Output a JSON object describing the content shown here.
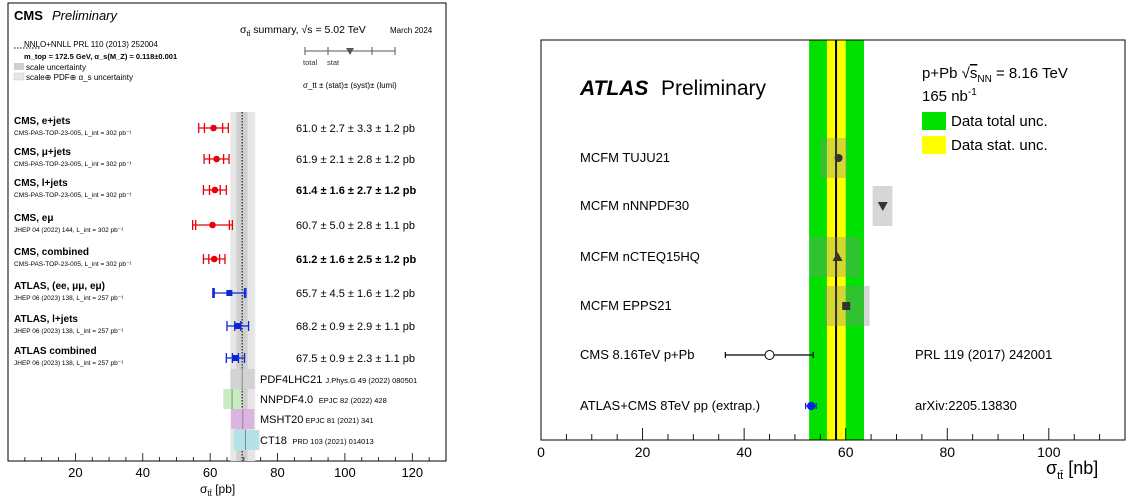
{
  "chart_data": [
    {
      "type": "scatter",
      "title": "CMS",
      "subtitle": "Preliminary",
      "summary_title": "σ_tt summary, √s = 5.02 TeV",
      "date": "March 2024",
      "xlabel": "σ_tt [pb]",
      "xlim": [
        0,
        130
      ],
      "xticks": [
        20,
        40,
        60,
        80,
        100,
        120
      ],
      "theory": {
        "line1": "NNLO+NNLL  PRL 110 (2013) 252004",
        "line2": "m_top = 172.5 GeV, α_s(M_Z) = 0.118±0.001",
        "line3": "scale uncertainty",
        "line4": "scale⊕ PDF⊕ α_s uncertainty",
        "central": 69.5,
        "scale_band": [
          67.8,
          71.1
        ],
        "full_band": [
          66.0,
          73.4
        ]
      },
      "legend_key": {
        "total": "total",
        "stat": "stat",
        "format": "σ_tt ± (stat)± (syst)± (lumi)"
      },
      "colors": {
        "cms": "#e8000b",
        "atlas": "#0a24d8",
        "scale": "#cfcfcf",
        "full": "#e6e6e6"
      },
      "measurements": [
        {
          "name": "CMS, e+jets",
          "ref": "CMS-PAS-TOP-23-005,  L_int = 302 pb⁻¹",
          "value": 61.0,
          "stat": 2.7,
          "total": 4.4,
          "text": "61.0 ± 2.7 ± 3.3 ± 1.2 pb",
          "bold": false,
          "exp": "cms"
        },
        {
          "name": "CMS, μ+jets",
          "ref": "CMS-PAS-TOP-23-005,  L_int = 302 pb⁻¹",
          "value": 61.9,
          "stat": 2.1,
          "total": 3.7,
          "text": "61.9 ± 2.1 ± 2.8 ± 1.2 pb",
          "bold": false,
          "exp": "cms"
        },
        {
          "name": "CMS, l+jets",
          "ref": "CMS-PAS-TOP-23-005,  L_int = 302 pb⁻¹",
          "value": 61.4,
          "stat": 1.6,
          "total": 3.4,
          "text": "61.4 ± 1.6 ± 2.7 ± 1.2 pb",
          "bold": true,
          "exp": "cms"
        },
        {
          "name": "CMS, eμ",
          "ref": "JHEP 04 (2022) 144,  L_int = 302 pb⁻¹",
          "value": 60.7,
          "stat": 5.0,
          "total": 5.9,
          "text": "60.7 ± 5.0 ± 2.8 ± 1.1 pb",
          "bold": false,
          "exp": "cms"
        },
        {
          "name": "CMS, combined",
          "ref": "CMS-PAS-TOP-23-005,  L_int = 302 pb⁻¹",
          "value": 61.2,
          "stat": 1.6,
          "total": 3.2,
          "text": "61.2 ± 1.6 ± 2.5 ± 1.2 pb",
          "bold": true,
          "exp": "cms"
        },
        {
          "name": "ATLAS, (ee, μμ, eμ)",
          "ref": "JHEP 06 (2023) 138,  L_int = 257 pb⁻¹",
          "value": 65.7,
          "stat": 4.5,
          "total": 4.9,
          "text": "65.7 ± 4.5 ± 1.6 ± 1.2 pb",
          "bold": false,
          "exp": "atlas"
        },
        {
          "name": "ATLAS, l+jets",
          "ref": "JHEP 06 (2023) 138,  L_int = 257 pb⁻¹",
          "value": 68.2,
          "stat": 0.9,
          "total": 3.2,
          "text": "68.2 ± 0.9 ± 2.9 ± 1.1 pb",
          "bold": false,
          "exp": "atlas"
        },
        {
          "name": "ATLAS combined",
          "ref": "JHEP 06 (2023) 138,  L_int = 257 pb⁻¹",
          "value": 67.5,
          "stat": 0.9,
          "total": 2.7,
          "text": "67.5 ± 0.9 ± 2.3 ± 1.1 pb",
          "bold": false,
          "exp": "atlas"
        }
      ],
      "pdfs": [
        {
          "name": "PDF4LHC21",
          "ref": "J.Phys.G 49 (2022) 080501",
          "low": 66.0,
          "high": 73.2,
          "central": 69.5,
          "color": "#d3d3d3"
        },
        {
          "name": "NNPDF4.0",
          "ref": "EPJC 82 (2022) 428",
          "low": 63.9,
          "high": 69.2,
          "central": 66.5,
          "color": "#c6ecc0"
        },
        {
          "name": "MSHT20",
          "ref": "EPJC 81 (2021) 341",
          "low": 66.2,
          "high": 73.1,
          "central": 69.7,
          "color": "#dcb4e0"
        },
        {
          "name": "CT18",
          "ref": "PRD 103 (2021) 014013",
          "low": 67.0,
          "high": 74.6,
          "central": 70.5,
          "color": "#b4e2e8"
        }
      ]
    },
    {
      "type": "scatter",
      "title": "ATLAS",
      "subtitle": "Preliminary",
      "system": "p+Pb √s_NN = 8.16 TeV",
      "lumi": "165 nb⁻¹",
      "xlabel": "σ_tt [nb]",
      "xlim": [
        0,
        115
      ],
      "xticks": [
        0,
        20,
        40,
        60,
        80,
        100
      ],
      "data": {
        "central": 58.1,
        "stat_band": [
          56.3,
          60.0
        ],
        "total_band": [
          52.8,
          63.6
        ]
      },
      "legend": [
        {
          "label": "Data total unc.",
          "color": "#00e100"
        },
        {
          "label": "Data stat. unc.",
          "color": "#ffff00"
        }
      ],
      "predictions": [
        {
          "name": "MCFM TUJU21",
          "value": 58.6,
          "low": 55.0,
          "high": 60.3,
          "marker": "circle"
        },
        {
          "name": "MCFM nNNPDF30",
          "value": 67.3,
          "low": 65.3,
          "high": 69.2,
          "marker": "triangle-down"
        },
        {
          "name": "MCFM nCTEQ15HQ",
          "value": 58.4,
          "low": 52.9,
          "high": 62.9,
          "marker": "triangle-up"
        },
        {
          "name": "MCFM EPPS21",
          "value": 60.1,
          "low": 55.8,
          "high": 64.7,
          "marker": "square"
        }
      ],
      "others": [
        {
          "name": "CMS 8.16TeV p+Pb",
          "ref": "PRL 119 (2017) 242001",
          "value": 45.0,
          "low": 36.3,
          "high": 53.6,
          "marker": "open-circle"
        },
        {
          "name": "ATLAS+CMS 8TeV pp (extrap.)",
          "ref": "arXiv:2205.13830",
          "value": 53.2,
          "low": 52.1,
          "high": 54.2,
          "marker": "filled-circle"
        }
      ]
    }
  ]
}
